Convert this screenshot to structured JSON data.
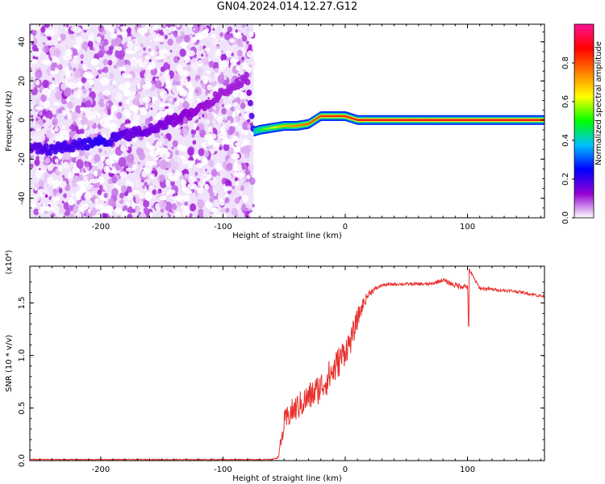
{
  "title": "GN04.2024.014.12.27.G12",
  "chart_data": [
    {
      "type": "heatmap",
      "xlabel": "Height of straight line (km)",
      "ylabel": "Frequency (Hz)",
      "xlim": [
        -258,
        163
      ],
      "ylim": [
        -50,
        49
      ],
      "xticks": [
        "-200",
        "-100",
        "0",
        "100"
      ],
      "yticks": [
        "40",
        "20",
        "0",
        "-20",
        "-40"
      ],
      "colorbar": {
        "label": "Normalized spectral amplitude",
        "range": [
          0,
          1
        ],
        "ticks": [
          "0.0",
          "0.2",
          "0.4",
          "0.6",
          "0.8"
        ],
        "colors": [
          "#ffffff",
          "#9400d3",
          "#0000ff",
          "#00bfff",
          "#00ff00",
          "#ffff00",
          "#ff7f00",
          "#ff0000",
          "#ff1493"
        ]
      },
      "noise_region": {
        "x": [
          -258,
          -75
        ],
        "amplitude": [
          0.0,
          0.25
        ]
      },
      "ridge": {
        "x": [
          -258,
          -240,
          -220,
          -200,
          -180,
          -160,
          -140,
          -120,
          -100,
          -80,
          -75,
          -70,
          -60,
          -50,
          -40,
          -30,
          -20,
          -10,
          0,
          10,
          30,
          60,
          92,
          120,
          163
        ],
        "frequency": [
          -15,
          -15,
          -13,
          -11,
          -8,
          -5,
          0,
          5,
          14,
          22,
          -6,
          -5,
          -4,
          -3,
          -3,
          -2,
          2,
          2,
          2,
          0,
          0,
          0,
          0,
          0,
          0
        ],
        "amplitude": [
          0.3,
          0.35,
          0.35,
          0.4,
          0.3,
          0.28,
          0.25,
          0.22,
          0.2,
          0.2,
          0.4,
          0.5,
          0.6,
          0.7,
          0.75,
          0.8,
          0.85,
          0.85,
          0.85,
          0.9,
          0.9,
          0.9,
          0.9,
          0.9,
          0.9
        ]
      }
    },
    {
      "type": "line",
      "xlabel": "Height of straight line (km)",
      "ylabel": "SNR (10 * v/v)",
      "y_multiplier": "(x10⁴)",
      "xlim": [
        -258,
        163
      ],
      "ylim": [
        0,
        1.85
      ],
      "xticks": [
        "-200",
        "-100",
        "0",
        "100"
      ],
      "yticks": [
        "0.0",
        "0.5",
        "1.0",
        "1.5"
      ],
      "color": "#e8302d",
      "series": [
        {
          "x": [
            -258,
            -200,
            -150,
            -100,
            -60,
            -55,
            -52,
            -50,
            -45,
            -40,
            -30,
            -20,
            -10,
            0,
            5,
            10,
            15,
            20,
            30,
            40,
            50,
            60,
            70,
            75,
            80,
            85,
            90,
            95,
            100,
            101,
            102,
            110,
            120,
            130,
            140,
            150,
            163
          ],
          "y": [
            0.01,
            0.01,
            0.01,
            0.01,
            0.01,
            0.03,
            0.2,
            0.35,
            0.45,
            0.5,
            0.6,
            0.7,
            0.85,
            1.05,
            1.15,
            1.35,
            1.5,
            1.6,
            1.67,
            1.68,
            1.68,
            1.68,
            1.68,
            1.7,
            1.72,
            1.69,
            1.67,
            1.66,
            1.66,
            1.3,
            1.8,
            1.64,
            1.63,
            1.62,
            1.61,
            1.59,
            1.56
          ],
          "noise": [
            0.005,
            0.005,
            0.005,
            0.005,
            0.005,
            0.01,
            0.08,
            0.12,
            0.12,
            0.13,
            0.14,
            0.15,
            0.16,
            0.14,
            0.12,
            0.1,
            0.06,
            0.03,
            0.015,
            0.015,
            0.015,
            0.015,
            0.015,
            0.02,
            0.02,
            0.02,
            0.03,
            0.03,
            0.03,
            0.02,
            0.02,
            0.015,
            0.015,
            0.015,
            0.015,
            0.015,
            0.015
          ]
        }
      ]
    }
  ]
}
